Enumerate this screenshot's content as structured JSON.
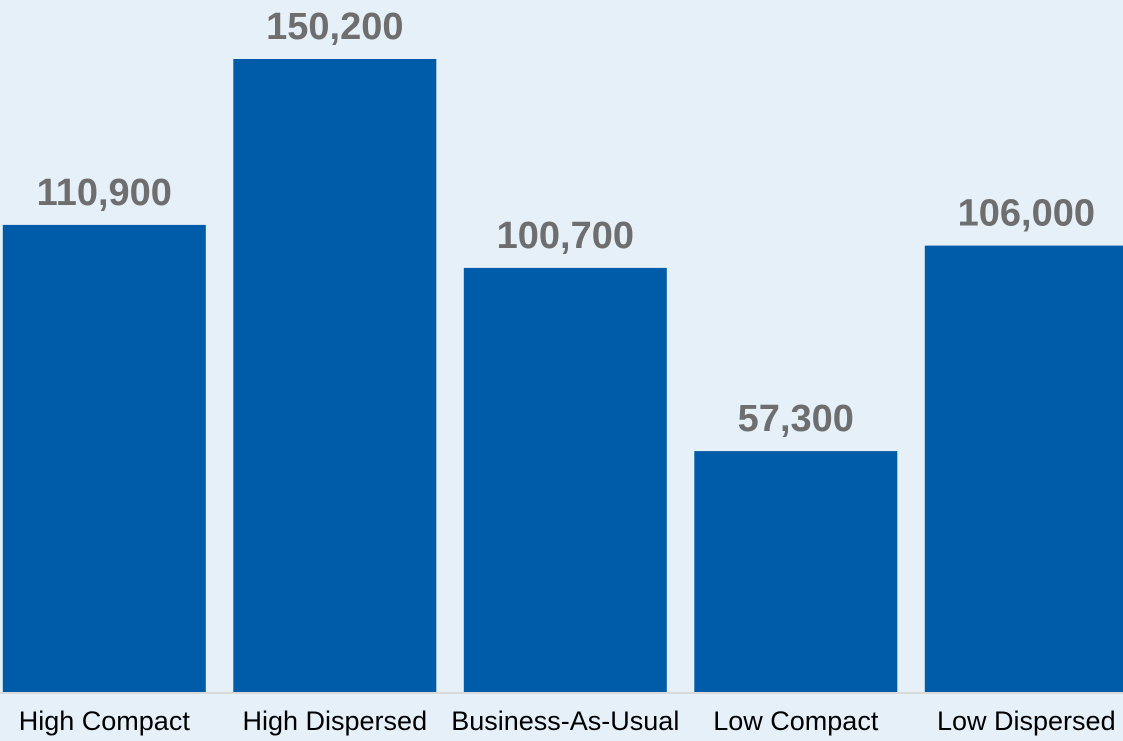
{
  "chart_data": {
    "type": "bar",
    "categories": [
      "High Compact",
      "High Dispersed",
      "Business-As-Usual",
      "Low Compact",
      "Low Dispersed"
    ],
    "values": [
      110900,
      150200,
      100700,
      57300,
      106000
    ],
    "data_labels": [
      "110,900",
      "150,200",
      "100,700",
      "57,300",
      "106,000"
    ],
    "title": "",
    "xlabel": "",
    "ylabel": "",
    "ylim": [
      0,
      150200
    ],
    "grid": false,
    "legend": "none",
    "colors": {
      "bar": "#005ba8",
      "value_label": "#6e6e6e",
      "axis": "#d9d9d9",
      "background": "#e6f0f9"
    }
  }
}
